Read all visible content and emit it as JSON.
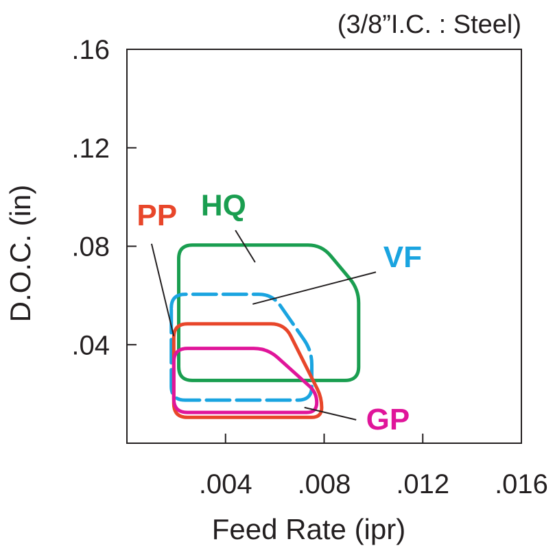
{
  "chart_data": {
    "type": "area",
    "subtitle": "(3/8”I.C. : Steel)",
    "xlabel": "Feed Rate (ipr)",
    "ylabel": "D.O.C. (in)",
    "xlim": [
      0,
      0.016
    ],
    "ylim": [
      0,
      0.16
    ],
    "x_ticks": [
      0.004,
      0.008,
      0.012,
      0.016
    ],
    "x_tick_labels": [
      ".004",
      ".008",
      ".012",
      ".016"
    ],
    "y_ticks": [
      0.04,
      0.08,
      0.12,
      0.16
    ],
    "y_tick_labels": [
      ".04",
      ".08",
      ".12",
      ".16"
    ],
    "grid": false,
    "series": [
      {
        "name": "HQ",
        "color": "#1a9e50",
        "style": "solid",
        "points": [
          [
            0.0021,
            0.0805
          ],
          [
            0.0079,
            0.0805
          ],
          [
            0.0094,
            0.0625
          ],
          [
            0.0094,
            0.0255
          ],
          [
            0.0021,
            0.0255
          ]
        ]
      },
      {
        "name": "VF",
        "color": "#1aa4e0",
        "style": "dashed",
        "points": [
          [
            0.0018,
            0.0605
          ],
          [
            0.0059,
            0.0605
          ],
          [
            0.0075,
            0.0375
          ],
          [
            0.0075,
            0.0175
          ],
          [
            0.0018,
            0.0175
          ]
        ]
      },
      {
        "name": "PP",
        "color": "#e8462a",
        "style": "solid",
        "points": [
          [
            0.0019,
            0.0485
          ],
          [
            0.0064,
            0.0485
          ],
          [
            0.0079,
            0.0185
          ],
          [
            0.0079,
            0.0105
          ],
          [
            0.0019,
            0.0105
          ]
        ]
      },
      {
        "name": "GP",
        "color": "#e0159a",
        "style": "solid",
        "points": [
          [
            0.0019,
            0.0385
          ],
          [
            0.0057,
            0.0385
          ],
          [
            0.0077,
            0.0205
          ],
          [
            0.0077,
            0.0125
          ],
          [
            0.0019,
            0.0125
          ]
        ]
      }
    ],
    "annotations": [
      {
        "label": "PP",
        "label_at": [
          0.0004,
          0.0885
        ],
        "pointer": [
          [
            0.001,
            0.081
          ],
          [
            0.0019,
            0.0435
          ]
        ]
      },
      {
        "label": "HQ",
        "label_at": [
          0.003,
          0.0925
        ],
        "pointer": [
          [
            0.0044,
            0.0865
          ],
          [
            0.0052,
            0.0735
          ]
        ]
      },
      {
        "label": "VF",
        "label_at": [
          0.0104,
          0.0715
        ],
        "pointer": [
          [
            0.0101,
            0.0695
          ],
          [
            0.0051,
            0.0565
          ]
        ]
      },
      {
        "label": "GP",
        "label_at": [
          0.0097,
          0.0055
        ],
        "pointer": [
          [
            0.0093,
            0.0095
          ],
          [
            0.0072,
            0.0145
          ]
        ]
      }
    ]
  }
}
